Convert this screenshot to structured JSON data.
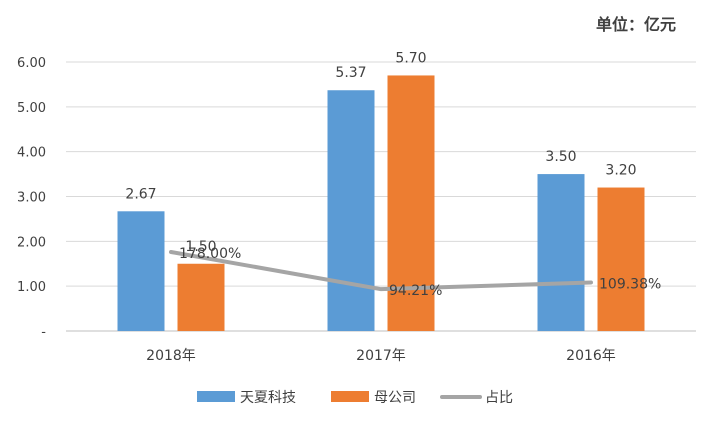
{
  "chart_data": {
    "type": "bar",
    "unit": "单位：亿元",
    "categories": [
      "2018年",
      "2017年",
      "2016年"
    ],
    "y_ticks": [
      "6.00",
      "5.00",
      "4.00",
      "3.00",
      "2.00",
      "1.00",
      "-"
    ],
    "ylim": [
      0,
      6
    ],
    "grid": true,
    "legend_position": "bottom",
    "series": [
      {
        "name": "天夏科技",
        "type": "bar",
        "color": "#5B9BD5",
        "values": [
          2.67,
          5.37,
          3.5
        ],
        "labels": [
          "2.67",
          "5.37",
          "3.50"
        ]
      },
      {
        "name": "母公司",
        "type": "bar",
        "color": "#ED7D31",
        "values": [
          1.5,
          5.7,
          3.2
        ],
        "labels": [
          "1.50",
          "5.70",
          "3.20"
        ]
      },
      {
        "name": "占比",
        "type": "line",
        "color": "#A5A5A5",
        "values": [
          178.0,
          94.21,
          109.38
        ],
        "labels": [
          "178.00%",
          "94.21%",
          "109.38%"
        ]
      }
    ]
  }
}
